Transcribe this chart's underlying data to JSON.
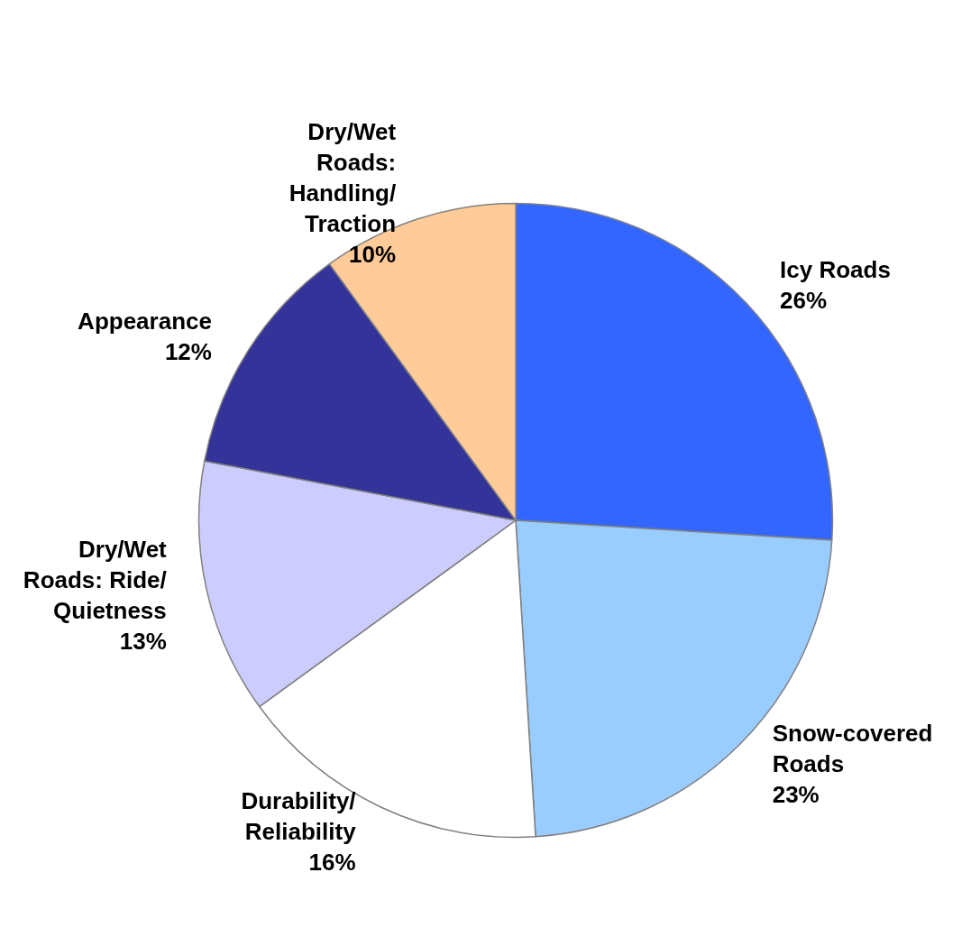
{
  "chart_data": {
    "type": "pie",
    "categories": [
      "Icy Roads",
      "Snow-covered Roads",
      "Durability/Reliability",
      "Dry/Wet Roads: Ride/Quietness",
      "Appearance",
      "Dry/Wet Roads: Handling/Traction"
    ],
    "values": [
      26,
      23,
      16,
      13,
      12,
      10
    ],
    "value_labels": [
      "26%",
      "23%",
      "16%",
      "13%",
      "12%",
      "10%"
    ],
    "colors": [
      "#3366ff",
      "#99ccff",
      "#ffffff",
      "#ccccff",
      "#333399",
      "#ffcc99"
    ],
    "legend": false
  }
}
